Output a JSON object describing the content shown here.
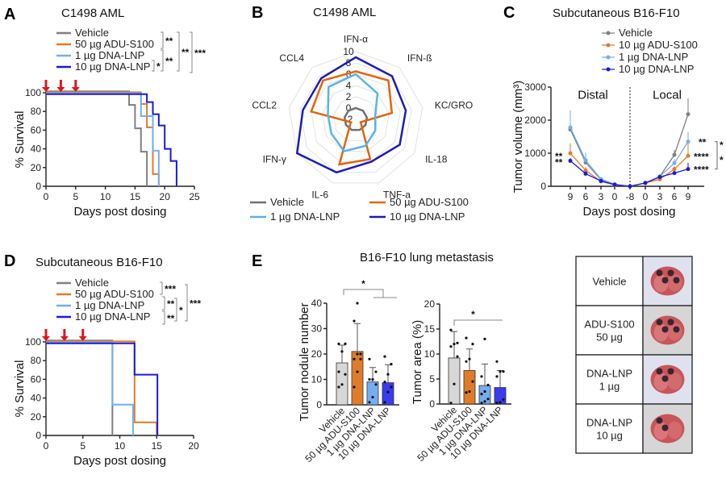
{
  "colors": {
    "vehicle": "#808080",
    "adu": "#e07b27",
    "lnp1": "#74aef0",
    "lnp10": "#1a1ad6",
    "arrow": "#d7191c",
    "radar_vehicle": "#707070",
    "radar_adu": "#e0660f",
    "radar_lnp1": "#58b4e6",
    "radar_lnp10": "#1c1cb4"
  },
  "chart_data": [
    {
      "panel": "A",
      "type": "line",
      "subtype": "kaplan-meier",
      "title": "C1498 AML",
      "xlabel": "Days post dosing",
      "ylabel": "% Survival",
      "xlim": [
        0,
        25
      ],
      "ylim": [
        0,
        100
      ],
      "xticks": [
        "0",
        "5",
        "10",
        "15",
        "20",
        "25"
      ],
      "yticks": [
        "0",
        "20",
        "40",
        "60",
        "80",
        "100"
      ],
      "dosing_days": [
        0,
        2.5,
        5
      ],
      "series": [
        {
          "name": "Vehicle",
          "steps": [
            [
              14,
              87
            ],
            [
              15,
              62
            ],
            [
              16,
              37
            ],
            [
              17,
              0
            ]
          ]
        },
        {
          "name": "50 µg ADU-S100",
          "steps": [
            [
              16,
              88
            ],
            [
              17,
              63
            ],
            [
              18,
              13
            ],
            [
              19,
              0
            ]
          ]
        },
        {
          "name": "1 µg DNA-LNP",
          "steps": [
            [
              16,
              75
            ],
            [
              18,
              38
            ],
            [
              19,
              0
            ]
          ]
        },
        {
          "name": "10 µg DNA-LNP",
          "steps": [
            [
              17,
              90
            ],
            [
              18,
              77
            ],
            [
              19,
              65
            ],
            [
              20,
              40
            ],
            [
              21,
              27
            ],
            [
              22,
              0
            ]
          ]
        }
      ],
      "significance": [
        "**",
        "**",
        "***",
        "*",
        "**"
      ]
    },
    {
      "panel": "B",
      "type": "radar",
      "title": "C1498 AML",
      "axes": [
        "IFN-α",
        "IFN-ß",
        "KC/GRO",
        "IL-18",
        "TNF-a",
        "IL-6",
        "IFN-γ",
        "CCL2",
        "CCL4"
      ],
      "rlim": [
        -2,
        10
      ],
      "rticks": [
        "-2",
        "0",
        "2",
        "4",
        "6",
        "8",
        "10"
      ],
      "series": [
        {
          "name": "Vehicle",
          "values": [
            0,
            0,
            0,
            0,
            0,
            0,
            0,
            0,
            0
          ]
        },
        {
          "name": "50 µg ADU-S100",
          "values": [
            6.5,
            7,
            4.5,
            -1,
            5.5,
            6.5,
            -1,
            6,
            7
          ]
        },
        {
          "name": "1 µg DNA-LNP",
          "values": [
            6,
            4,
            1.5,
            2,
            3,
            4,
            3,
            3,
            5.5
          ]
        },
        {
          "name": "10 µg DNA-LNP",
          "values": [
            9,
            8,
            7,
            7,
            6,
            8,
            10,
            7.5,
            7.5
          ]
        }
      ]
    },
    {
      "panel": "C",
      "type": "line",
      "title": "Subcutaneous B16-F10",
      "xlabel": "Days post dosing",
      "ylabel": "Tumor volume (mm³)",
      "ylim": [
        0,
        3000
      ],
      "yticks": [
        "0",
        "1000",
        "2000",
        "3000"
      ],
      "categories": [
        "9",
        "6",
        "3",
        "0",
        "-8",
        "0",
        "3",
        "6",
        "9"
      ],
      "regions": [
        "Distal",
        "Local"
      ],
      "series": [
        {
          "name": "Vehicle",
          "values": [
            1720,
            720,
            200,
            50,
            0,
            100,
            300,
            950,
            2180
          ],
          "err": [
            570,
            150,
            40,
            20,
            0,
            10,
            40,
            150,
            480
          ]
        },
        {
          "name": "10 µg ADU-S100",
          "values": [
            1000,
            480,
            150,
            40,
            0,
            100,
            210,
            520,
            920
          ],
          "err": [
            300,
            100,
            30,
            15,
            0,
            10,
            30,
            80,
            400
          ]
        },
        {
          "name": "1 µg DNA-LNP",
          "values": [
            1780,
            790,
            220,
            60,
            0,
            100,
            300,
            700,
            1350
          ],
          "err": [
            500,
            230,
            50,
            20,
            0,
            10,
            40,
            120,
            300
          ]
        },
        {
          "name": "10 µg DNA-LNP",
          "values": [
            770,
            380,
            160,
            50,
            0,
            100,
            280,
            400,
            520
          ],
          "err": [
            80,
            40,
            30,
            15,
            0,
            10,
            30,
            40,
            190
          ]
        }
      ],
      "significance_left": [
        "**",
        "**"
      ],
      "significance_right": [
        "**",
        "****",
        "****",
        "*",
        "*"
      ]
    },
    {
      "panel": "D",
      "type": "line",
      "subtype": "kaplan-meier",
      "title": "Subcutaneous B16-F10",
      "xlabel": "Days post dosing",
      "ylabel": "% Survival",
      "xlim": [
        0,
        20
      ],
      "ylim": [
        0,
        100
      ],
      "xticks": [
        "0",
        "5",
        "10",
        "15",
        "20"
      ],
      "yticks": [
        "0",
        "20",
        "40",
        "60",
        "80",
        "100"
      ],
      "dosing_days": [
        0,
        2.5,
        5
      ],
      "series": [
        {
          "name": "Vehicle",
          "steps": [
            [
              9,
              0
            ]
          ]
        },
        {
          "name": "50 µg ADU-S100",
          "steps": [
            [
              12,
              14
            ],
            [
              15,
              0
            ]
          ]
        },
        {
          "name": "1 µg DNA-LNP",
          "steps": [
            [
              9,
              33
            ],
            [
              11.8,
              0
            ]
          ]
        },
        {
          "name": "10 µg DNA-LNP",
          "steps": [
            [
              12,
              65
            ],
            [
              15.1,
              0
            ]
          ]
        }
      ],
      "significance": [
        "***",
        "**",
        "**",
        "*",
        "***"
      ]
    },
    {
      "panel": "E",
      "type": "bar",
      "title": "B16-F10 lung metastasis",
      "ylabel": "Tumor nodule number",
      "ylim": [
        0,
        40
      ],
      "yticks": [
        "0",
        "10",
        "20",
        "30",
        "40"
      ],
      "categories": [
        "Vehicle",
        "50 µg ADU-S100",
        "1 µg DNA-LNP",
        "10 µg DNA-LNP"
      ],
      "values": [
        16.5,
        21,
        9,
        8.7
      ],
      "err": [
        7,
        11,
        5.7,
        7.1
      ],
      "points": [
        [
          7,
          8,
          12,
          13,
          21,
          24,
          24
        ],
        [
          7,
          13,
          18,
          18,
          20,
          20,
          33,
          40
        ],
        [
          1,
          3,
          8,
          10,
          10,
          13,
          18
        ],
        [
          1,
          5,
          7,
          9,
          12,
          16,
          19
        ]
      ],
      "significance": [
        "*"
      ]
    },
    {
      "panel": "E",
      "type": "bar",
      "ylabel": "Tumor area (%)",
      "ylim": [
        0,
        20
      ],
      "yticks": [
        "0",
        "5",
        "10",
        "15",
        "20"
      ],
      "categories": [
        "Vehicle",
        "50 µg ADU-S100",
        "1 µg DNA-LNP",
        "10 µg DNA-LNP"
      ],
      "values": [
        9.2,
        6.7,
        3.7,
        3.3
      ],
      "err": [
        5.3,
        4.3,
        4.3,
        3.4
      ],
      "points": [
        [
          0.2,
          4,
          9.5,
          11.5,
          12,
          12.2,
          14.8
        ],
        [
          2.3,
          2.5,
          4.5,
          8.5,
          9,
          12,
          13.2
        ],
        [
          0.2,
          0.5,
          1,
          2,
          2.5,
          3.8,
          5.5,
          13
        ],
        [
          0.2,
          0.3,
          0.9,
          5.5,
          6.5,
          6.5,
          8.5
        ]
      ],
      "significance": [
        "*"
      ]
    }
  ],
  "panel_labels": [
    "A",
    "B",
    "C",
    "D",
    "E"
  ],
  "lung_table": {
    "rows": [
      {
        "label": [
          "Vehicle"
        ],
        "bg": "#dfe2ee"
      },
      {
        "label": [
          "ADU-S100",
          "50 µg"
        ],
        "bg": "#d6d6d6"
      },
      {
        "label": [
          "DNA-LNP",
          "1 µg"
        ],
        "bg": "#dfe2ee"
      },
      {
        "label": [
          "DNA-LNP",
          "10 µg"
        ],
        "bg": "#d6d6d6"
      }
    ]
  }
}
